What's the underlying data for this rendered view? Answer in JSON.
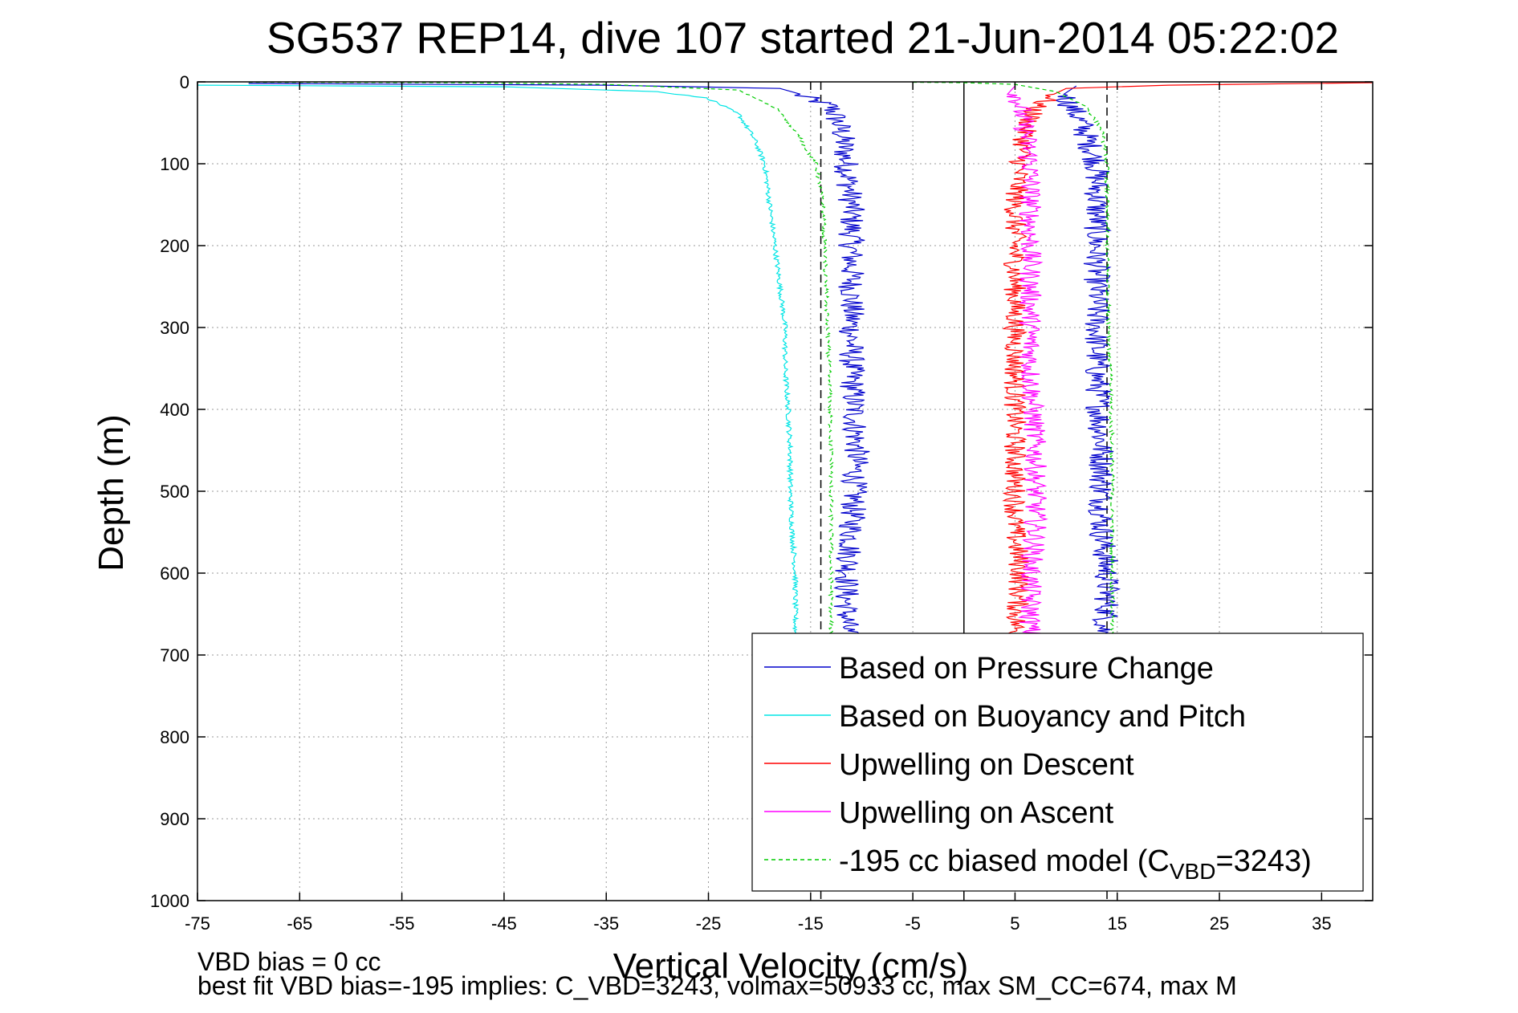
{
  "chart_data": {
    "type": "line",
    "title": "SG537 REP14, dive 107 started 21-Jun-2014 05:22:02",
    "xlabel": "Vertical Velocity (cm/s)",
    "ylabel": "Depth (m)",
    "xlim": [
      -75,
      40
    ],
    "ylim": [
      0,
      1000
    ],
    "y_reversed": true,
    "grid": true,
    "xticks": [
      -75,
      -65,
      -55,
      -45,
      -35,
      -25,
      -15,
      -5,
      5,
      15,
      25,
      35
    ],
    "yticks": [
      0,
      100,
      200,
      300,
      400,
      500,
      600,
      700,
      800,
      900,
      1000
    ],
    "legend_position": "bottom-right",
    "reference_lines": [
      {
        "x": 0,
        "style": "solid",
        "color": "#000000"
      },
      {
        "x": -14,
        "style": "dashed",
        "color": "#000000"
      },
      {
        "x": 14,
        "style": "dashed",
        "color": "#000000"
      }
    ],
    "series": [
      {
        "name": "Based on Pressure Change",
        "color": "#0000cc",
        "style": "solid",
        "segments": [
          {
            "x": [
              -70,
              -35,
              -18,
              -13,
              -12,
              -11.5,
              -11,
              -11,
              -11,
              -10.5,
              -11,
              -11.5,
              -11.5
            ],
            "depth": [
              2,
              4,
              8,
              30,
              60,
              100,
              150,
              250,
              350,
              450,
              550,
              620,
              680
            ]
          },
          {
            "x": [
              11,
              10,
              11.5,
              13,
              13,
              13,
              13,
              13.5,
              13.5,
              14,
              14,
              13.5
            ],
            "depth": [
              5,
              20,
              50,
              100,
              150,
              250,
              350,
              450,
              550,
              600,
              650,
              680
            ]
          }
        ]
      },
      {
        "name": "Based on Buoyancy and Pitch",
        "color": "#00e5e5",
        "style": "solid",
        "segments": [
          {
            "x": [
              -75,
              -60,
              -45,
              -30,
              -25,
              -22,
              -20.5,
              -19.5,
              -19,
              -18.5,
              -18,
              -17.5,
              -17.5,
              -17.2,
              -17,
              -17,
              -16.8,
              -16.5,
              -16.5,
              -16.5
            ],
            "depth": [
              4,
              5,
              6,
              12,
              20,
              40,
              70,
              100,
              150,
              200,
              250,
              300,
              350,
              400,
              450,
              500,
              550,
              600,
              650,
              680
            ]
          }
        ]
      },
      {
        "name": "Upwelling on Descent",
        "color": "#ff0000",
        "style": "solid",
        "segments": [
          {
            "x": [
              40,
              20,
              10,
              7,
              6,
              5.5,
              5,
              5,
              5,
              5,
              5,
              5.5,
              5
            ],
            "depth": [
              1,
              4,
              8,
              30,
              60,
              100,
              150,
              250,
              350,
              450,
              550,
              600,
              680
            ]
          }
        ]
      },
      {
        "name": "Upwelling on Ascent",
        "color": "#ff00ff",
        "style": "solid",
        "segments": [
          {
            "x": [
              5,
              5.5,
              6,
              6.5,
              6.5,
              6.5,
              6.5,
              7,
              7,
              6.5,
              6.5,
              6.5
            ],
            "depth": [
              5,
              30,
              60,
              100,
              150,
              250,
              350,
              450,
              550,
              600,
              650,
              680
            ]
          }
        ]
      },
      {
        "name": "-195 cc biased model (C",
        "subscript": "VBD",
        "name_suffix": "=3243)",
        "color": "#00cc00",
        "style": "dashed",
        "segments": [
          {
            "x": [
              -70,
              -50,
              -35,
              -22,
              -18,
              -16,
              -14.5,
              -13.8,
              -13.5,
              -13.2,
              -13,
              -13,
              -13
            ],
            "depth": [
              0.5,
              1,
              3,
              10,
              35,
              70,
              100,
              150,
              250,
              350,
              450,
              550,
              680
            ]
          },
          {
            "x": [
              -5,
              0,
              5,
              9,
              12,
              13.5,
              14,
              14,
              14.3,
              14.5,
              14.5,
              14.5
            ],
            "depth": [
              0.5,
              1,
              3,
              12,
              30,
              60,
              100,
              200,
              350,
              450,
              550,
              680
            ]
          }
        ]
      }
    ]
  },
  "footer": {
    "line1": "VBD bias = 0 cc",
    "line2": "best fit VBD bias=-195 implies: C_VBD=3243, volmax=50933 cc, max SM_CC=674, max M"
  },
  "legend": {
    "entries": [
      "Based on Pressure Change",
      "Based on Buoyancy and Pitch",
      "Upwelling on Descent",
      "Upwelling on Ascent"
    ]
  }
}
